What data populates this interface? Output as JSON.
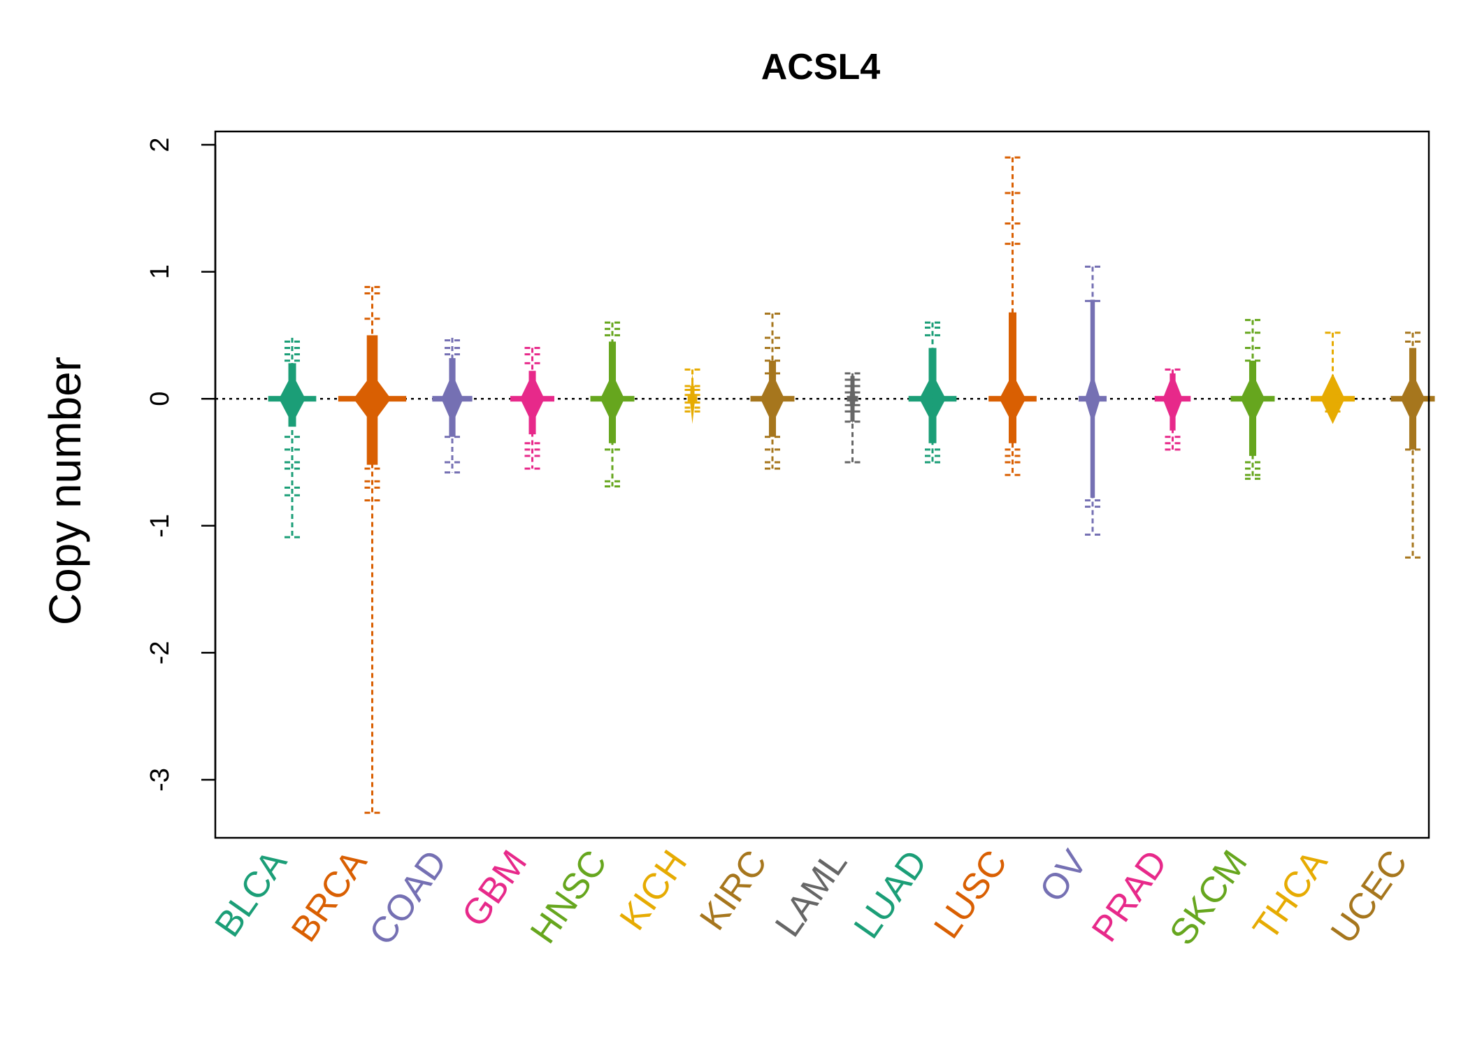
{
  "chart_data": {
    "type": "beeswarm",
    "title": "ACSL4",
    "xlabel": "",
    "ylabel": "Copy number",
    "ylim": [
      -3.45,
      2.1
    ],
    "yticks": [
      -3,
      -2,
      -1,
      0,
      1,
      2
    ],
    "reference_line": 0,
    "categories": [
      {
        "name": "BLCA",
        "color": "#1B9E77",
        "max": 0.48,
        "min": -1.09,
        "q_hi": 0.28,
        "q_lo": -0.22,
        "width": 0.6,
        "outliers": [
          0.45,
          0.4,
          0.35,
          0.3,
          -0.3,
          -0.4,
          -0.5,
          -0.55,
          -0.7,
          -0.76,
          -1.09
        ]
      },
      {
        "name": "BRCA",
        "color": "#D95F02",
        "max": 0.88,
        "min": -3.26,
        "q_hi": 0.5,
        "q_lo": -0.52,
        "width": 0.85,
        "outliers": [
          0.88,
          0.83,
          0.63,
          -0.55,
          -0.65,
          -0.7,
          -0.8,
          -3.26
        ]
      },
      {
        "name": "COAD",
        "color": "#7570B3",
        "max": 0.48,
        "min": -0.58,
        "q_hi": 0.32,
        "q_lo": -0.3,
        "width": 0.5,
        "outliers": [
          0.46,
          0.4,
          0.35,
          -0.3,
          -0.5,
          -0.58
        ]
      },
      {
        "name": "GBM",
        "color": "#E7298A",
        "max": 0.4,
        "min": -0.55,
        "q_hi": 0.22,
        "q_lo": -0.28,
        "width": 0.55,
        "outliers": [
          0.4,
          0.35,
          0.28,
          -0.35,
          -0.4,
          -0.45,
          -0.55
        ]
      },
      {
        "name": "HNSC",
        "color": "#66A61E",
        "max": 0.6,
        "min": -0.69,
        "q_hi": 0.45,
        "q_lo": -0.35,
        "width": 0.55,
        "outliers": [
          0.6,
          0.55,
          0.5,
          -0.4,
          -0.65,
          -0.69
        ]
      },
      {
        "name": "KICH",
        "color": "#E6AB02",
        "max": 0.23,
        "min": -0.1,
        "q_hi": 0.1,
        "q_lo": -0.05,
        "width": 0.12,
        "outliers": [
          0.23,
          0.1,
          0.07,
          0.03,
          -0.03,
          -0.07,
          -0.1
        ]
      },
      {
        "name": "KIRC",
        "color": "#A6761D",
        "max": 0.67,
        "min": -0.55,
        "q_hi": 0.3,
        "q_lo": -0.3,
        "width": 0.55,
        "outliers": [
          0.67,
          0.48,
          0.4,
          0.3,
          0.2,
          -0.3,
          -0.4,
          -0.5,
          -0.55
        ]
      },
      {
        "name": "LAML",
        "color": "#666666",
        "max": 0.2,
        "min": -0.5,
        "q_hi": 0.18,
        "q_lo": -0.18,
        "width": 0.14,
        "outliers": [
          0.2,
          0.15,
          0.1,
          0.05,
          -0.05,
          -0.1,
          -0.18,
          -0.5
        ]
      },
      {
        "name": "LUAD",
        "color": "#1B9E77",
        "max": 0.6,
        "min": -0.5,
        "q_hi": 0.4,
        "q_lo": -0.35,
        "width": 0.6,
        "outliers": [
          0.6,
          0.56,
          0.5,
          -0.4,
          -0.45,
          -0.5
        ]
      },
      {
        "name": "LUSC",
        "color": "#D95F02",
        "max": 1.9,
        "min": -0.6,
        "q_hi": 0.68,
        "q_lo": -0.35,
        "width": 0.6,
        "outliers": [
          1.9,
          1.62,
          1.38,
          1.22,
          -0.4,
          -0.45,
          -0.5,
          -0.6
        ]
      },
      {
        "name": "OV",
        "color": "#7570B3",
        "max": 1.04,
        "min": -1.07,
        "q_hi": 0.78,
        "q_lo": -0.78,
        "width": 0.35,
        "outliers": [
          1.04,
          0.77,
          -0.8,
          -0.85,
          -1.07
        ]
      },
      {
        "name": "PRAD",
        "color": "#E7298A",
        "max": 0.23,
        "min": -0.4,
        "q_hi": 0.2,
        "q_lo": -0.25,
        "width": 0.45,
        "outliers": [
          0.23,
          -0.3,
          -0.35,
          -0.4
        ]
      },
      {
        "name": "SKCM",
        "color": "#66A61E",
        "max": 0.62,
        "min": -0.63,
        "q_hi": 0.3,
        "q_lo": -0.45,
        "width": 0.55,
        "outliers": [
          0.62,
          0.52,
          0.4,
          0.3,
          -0.5,
          -0.55,
          -0.6,
          -0.63
        ]
      },
      {
        "name": "THCA",
        "color": "#E6AB02",
        "max": 0.52,
        "min": -0.1,
        "q_hi": 0.05,
        "q_lo": -0.05,
        "width": 0.55,
        "outliers": [
          0.52,
          0.04,
          -0.04,
          -0.1
        ]
      },
      {
        "name": "UCEC",
        "color": "#A6761D",
        "max": 0.52,
        "min": -1.25,
        "q_hi": 0.4,
        "q_lo": -0.4,
        "width": 0.55,
        "outliers": [
          0.52,
          0.45,
          -0.4,
          -1.25
        ]
      }
    ]
  }
}
